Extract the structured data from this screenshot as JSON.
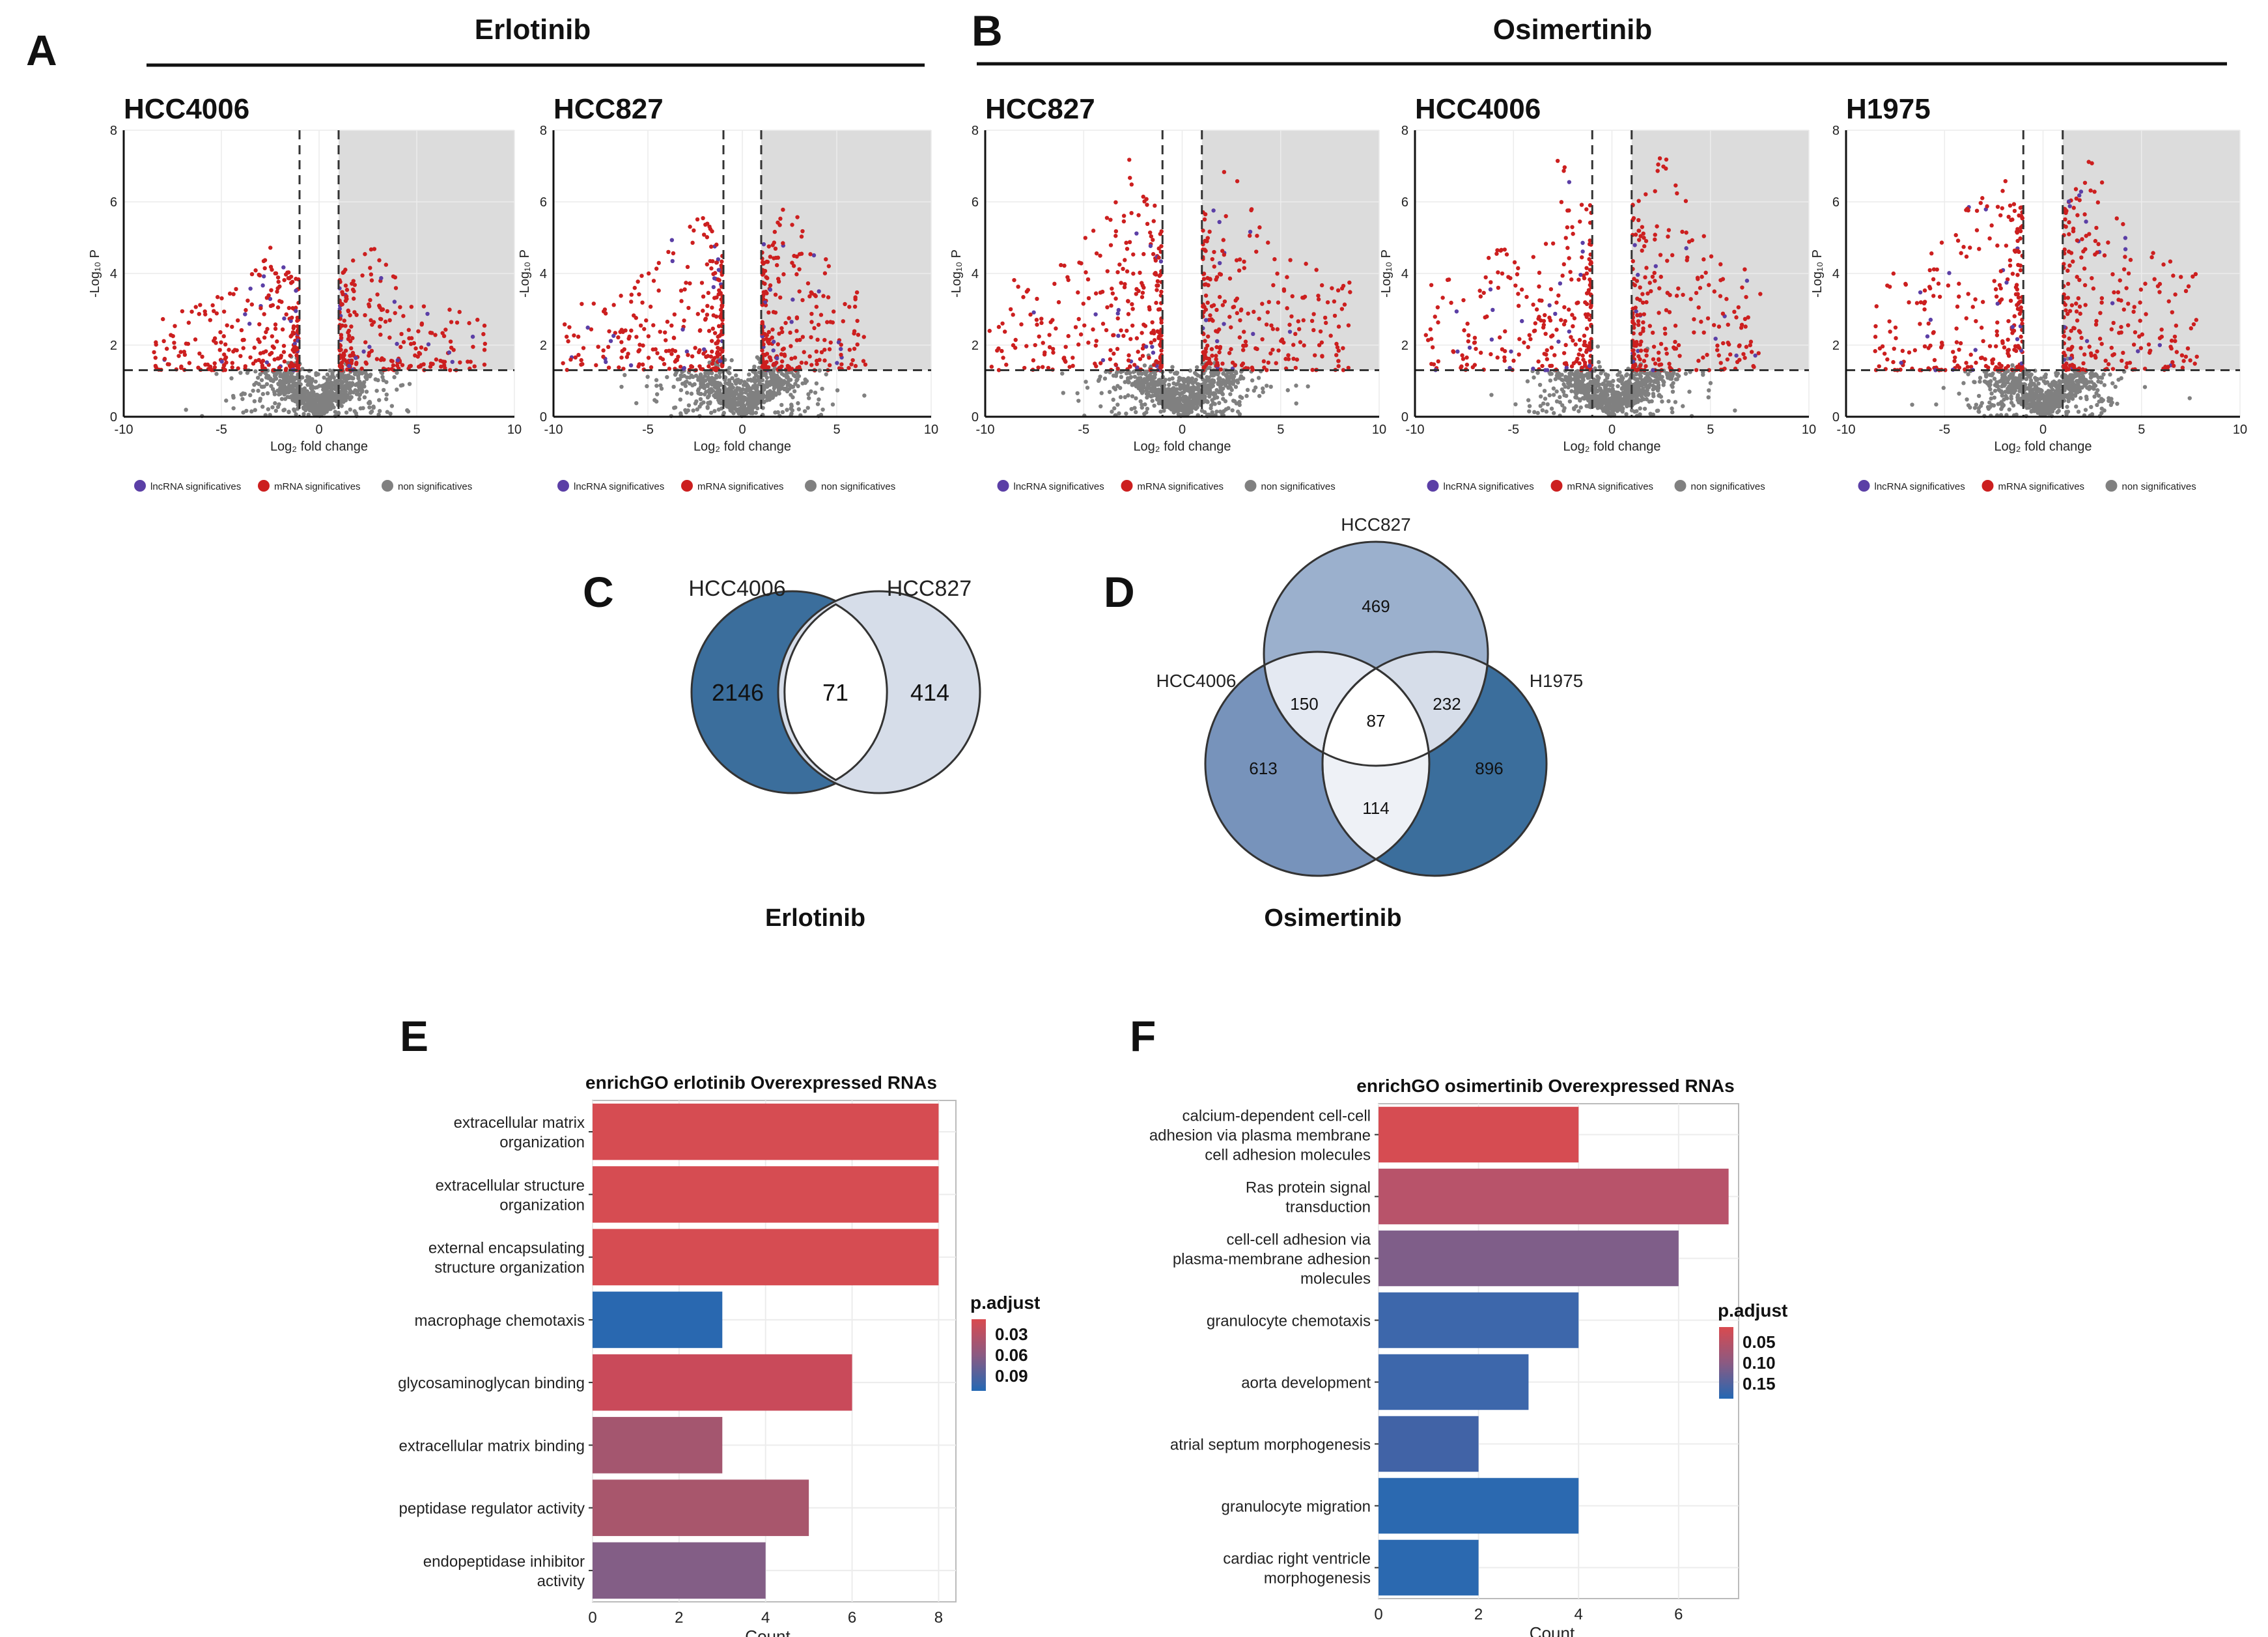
{
  "panels": {
    "A": "A",
    "B": "B",
    "C": "C",
    "D": "D",
    "E": "E",
    "F": "F"
  },
  "group_titles": {
    "erlotinib": "Erlotinib",
    "osimertinib": "Osimertinib"
  },
  "volcano_axes": {
    "xlabel": "Log₂ fold change",
    "ylabel": "-Log₁₀ P",
    "xticks": [
      "-10",
      "-5",
      "0",
      "5",
      "10"
    ],
    "yticks": [
      "0",
      "2",
      "4",
      "6",
      "8"
    ]
  },
  "volcano_legend": [
    "lncRNA significatives",
    "mRNA significatives",
    "non significatives"
  ],
  "colors": {
    "lncRNA": "#5b3fa6",
    "mRNA": "#cc1f1f",
    "non": "#808080",
    "shade": "#dcdcdc",
    "venn_dark": "#3b6e9c",
    "venn_mid": "#8aa3c6",
    "venn_light": "#d6dde9",
    "venn_pale": "#eef1f6"
  },
  "chart_data": [
    {
      "type": "scatter",
      "panel": "A",
      "title": "HCC4006",
      "xlim": [
        -10,
        10
      ],
      "ylim": [
        0,
        8
      ],
      "fc_threshold": [
        -1,
        1
      ],
      "p_threshold": 1.3,
      "max_y": 5.0,
      "up_spread": 8.5,
      "down_spread": 8.5
    },
    {
      "type": "scatter",
      "panel": "A",
      "title": "HCC827",
      "xlim": [
        -10,
        10
      ],
      "ylim": [
        0,
        8
      ],
      "fc_threshold": [
        -1,
        1
      ],
      "p_threshold": 1.3,
      "max_y": 6.2,
      "up_spread": 6.5,
      "down_spread": 9.5
    },
    {
      "type": "scatter",
      "panel": "B",
      "title": "HCC827",
      "xlim": [
        -10,
        10
      ],
      "ylim": [
        0,
        8
      ],
      "fc_threshold": [
        -1,
        1
      ],
      "p_threshold": 1.3,
      "max_y": 7.5,
      "up_spread": 8.5,
      "down_spread": 9.8
    },
    {
      "type": "scatter",
      "panel": "B",
      "title": "HCC4006",
      "xlim": [
        -10,
        10
      ],
      "ylim": [
        0,
        8
      ],
      "fc_threshold": [
        -1,
        1
      ],
      "p_threshold": 1.3,
      "max_y": 7.8,
      "up_spread": 7.5,
      "down_spread": 9.5
    },
    {
      "type": "scatter",
      "panel": "B",
      "title": "H1975",
      "xlim": [
        -10,
        10
      ],
      "ylim": [
        0,
        8
      ],
      "fc_threshold": [
        -1,
        1
      ],
      "p_threshold": 1.3,
      "max_y": 7.6,
      "up_spread": 7.8,
      "down_spread": 8.5
    },
    {
      "type": "venn",
      "panel": "C",
      "title": "Erlotinib",
      "sets": [
        "HCC4006",
        "HCC827"
      ],
      "regions": {
        "HCC4006_only": "2146",
        "shared": "71",
        "HCC827_only": "414"
      }
    },
    {
      "type": "venn",
      "panel": "D",
      "title": "Osimertinib",
      "sets": [
        "HCC827",
        "HCC4006",
        "H1975"
      ],
      "regions": {
        "HCC827_only": "469",
        "HCC4006_only": "613",
        "H1975_only": "896",
        "HCC827_HCC4006": "150",
        "HCC827_H1975": "232",
        "HCC4006_H1975": "114",
        "all": "87"
      }
    },
    {
      "type": "bar",
      "panel": "E",
      "title": "enrichGO erlotinib Overexpressed RNAs",
      "xlabel": "Count",
      "xlim": [
        0,
        8.4
      ],
      "xticks": [
        "0",
        "2",
        "4",
        "6",
        "8"
      ],
      "legend_title": "p.adjust",
      "legend_ticks": [
        "0.03",
        "0.06",
        "0.09"
      ],
      "categories": [
        [
          "extracellular matrix",
          "organization"
        ],
        [
          "extracellular structure",
          "organization"
        ],
        [
          "external encapsulating",
          "structure organization"
        ],
        [
          "macrophage chemotaxis"
        ],
        [
          "glycosaminoglycan binding"
        ],
        [
          "extracellular matrix binding"
        ],
        [
          "peptidase regulator activity"
        ],
        [
          "endopeptidase inhibitor",
          "activity"
        ]
      ],
      "values": [
        8,
        8,
        8,
        3,
        6,
        3,
        5,
        4
      ],
      "bar_colors": [
        "#d64c52",
        "#d64c52",
        "#d64c52",
        "#2968b0",
        "#c94a5a",
        "#a4566f",
        "#a8566c",
        "#835e86"
      ]
    },
    {
      "type": "bar",
      "panel": "F",
      "title": "enrichGO osimertinib Overexpressed RNAs",
      "xlabel": "Count",
      "xlim": [
        0,
        7.2
      ],
      "xticks": [
        "0",
        "2",
        "4",
        "6"
      ],
      "legend_title": "p.adjust",
      "legend_ticks": [
        "0.05",
        "0.10",
        "0.15"
      ],
      "categories": [
        [
          "calcium-dependent cell-cell",
          "adhesion via plasma membrane",
          "cell adhesion molecules"
        ],
        [
          "Ras protein signal",
          "transduction"
        ],
        [
          "cell-cell adhesion via",
          "plasma-membrane adhesion",
          "molecules"
        ],
        [
          "granulocyte chemotaxis"
        ],
        [
          "aorta development"
        ],
        [
          "atrial septum morphogenesis"
        ],
        [
          "granulocyte migration"
        ],
        [
          "cardiac right ventricle",
          "morphogenesis"
        ]
      ],
      "values": [
        4,
        7,
        6,
        4,
        3,
        2,
        4,
        2
      ],
      "bar_colors": [
        "#d64c52",
        "#b8536a",
        "#7f5e89",
        "#3d67ab",
        "#3d67ab",
        "#4163a6",
        "#2b69b0",
        "#2b69b0"
      ]
    }
  ]
}
